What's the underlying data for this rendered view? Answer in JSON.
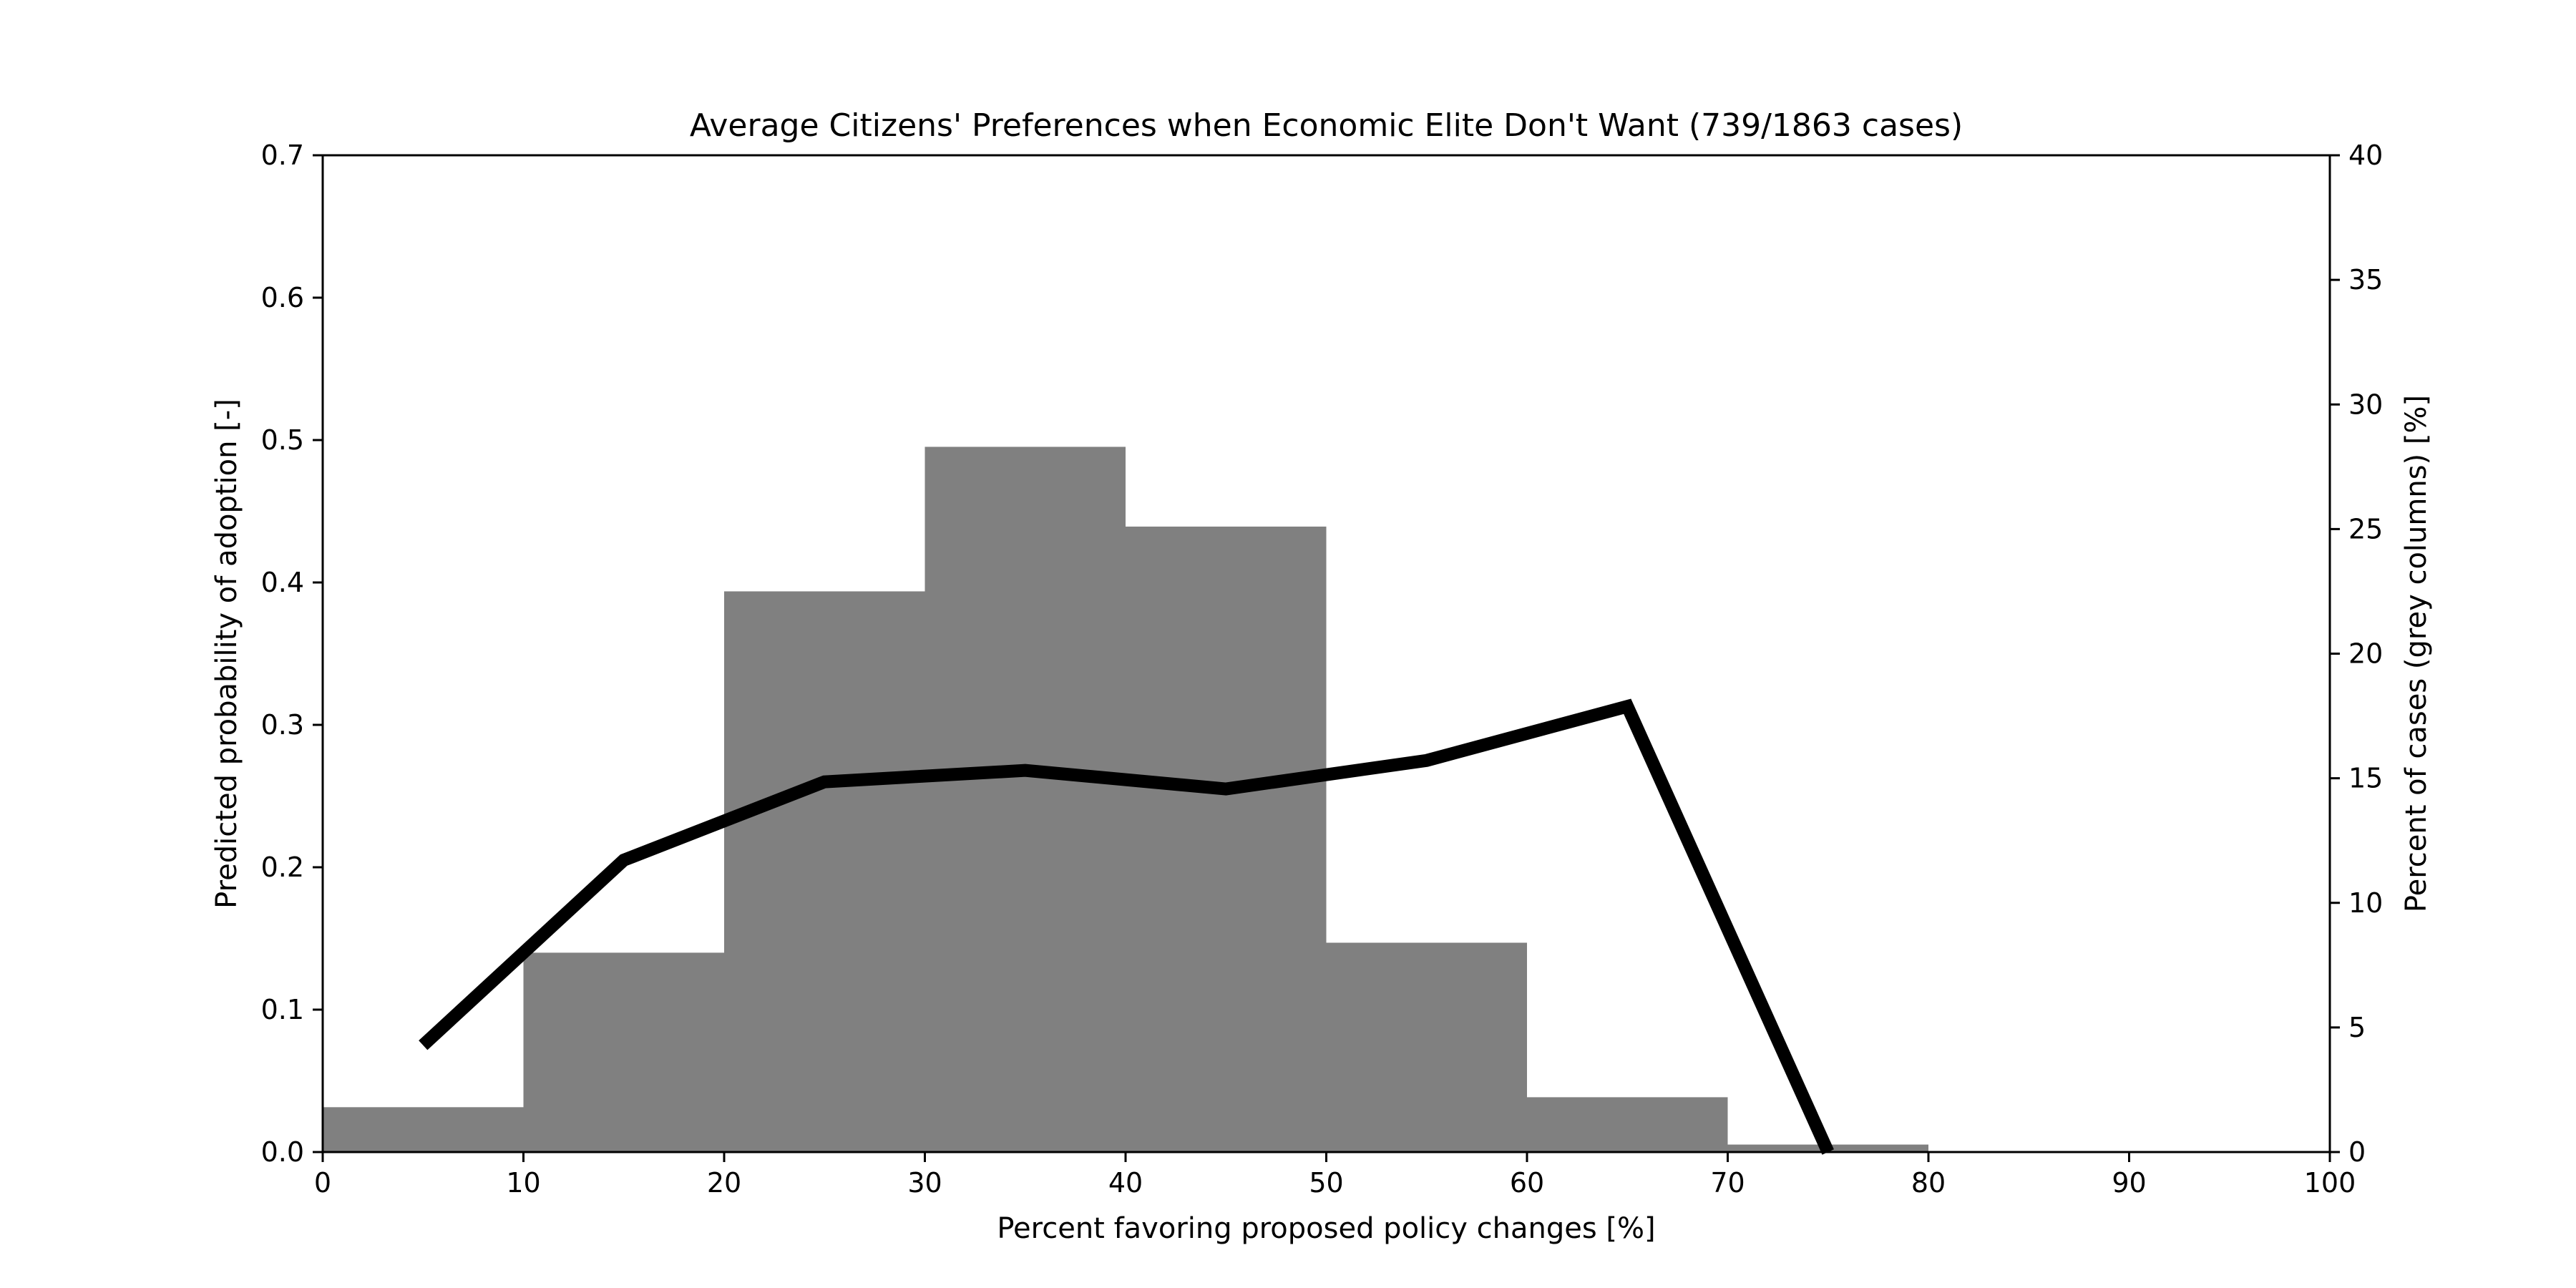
{
  "chart_data": {
    "type": "bar+line",
    "title": "Average Citizens' Preferences when Economic Elite Don't Want (739/1863 cases)",
    "xlabel": "Percent favoring proposed policy changes [%]",
    "ylabel_left": "Predicted probability of adoption [-]",
    "ylabel_right": "Percent of cases (grey columns) [%]",
    "xlim": [
      0,
      100
    ],
    "ylim_left": [
      0,
      0.7
    ],
    "ylim_right": [
      0,
      40
    ],
    "x_ticks": [
      "0",
      "10",
      "20",
      "30",
      "40",
      "50",
      "60",
      "70",
      "80",
      "90",
      "100"
    ],
    "y_left_ticks": [
      "0.0",
      "0.1",
      "0.2",
      "0.3",
      "0.4",
      "0.5",
      "0.6",
      "0.7"
    ],
    "y_right_ticks": [
      "0",
      "5",
      "10",
      "15",
      "20",
      "25",
      "30",
      "35",
      "40"
    ],
    "bars": {
      "bins": [
        [
          0,
          10
        ],
        [
          10,
          20
        ],
        [
          20,
          30
        ],
        [
          30,
          40
        ],
        [
          40,
          50
        ],
        [
          50,
          60
        ],
        [
          60,
          70
        ],
        [
          70,
          80
        ],
        [
          80,
          90
        ],
        [
          90,
          100
        ]
      ],
      "values": [
        1.8,
        8.0,
        22.5,
        28.3,
        25.1,
        8.4,
        2.2,
        0.3,
        0,
        0
      ],
      "color": "#808080"
    },
    "line": {
      "x": [
        5,
        15,
        25,
        35,
        45,
        55,
        65,
        75
      ],
      "y": [
        0.075,
        0.205,
        0.26,
        0.268,
        0.255,
        0.275,
        0.313,
        0.0
      ],
      "color": "#000000"
    },
    "grid": false
  }
}
